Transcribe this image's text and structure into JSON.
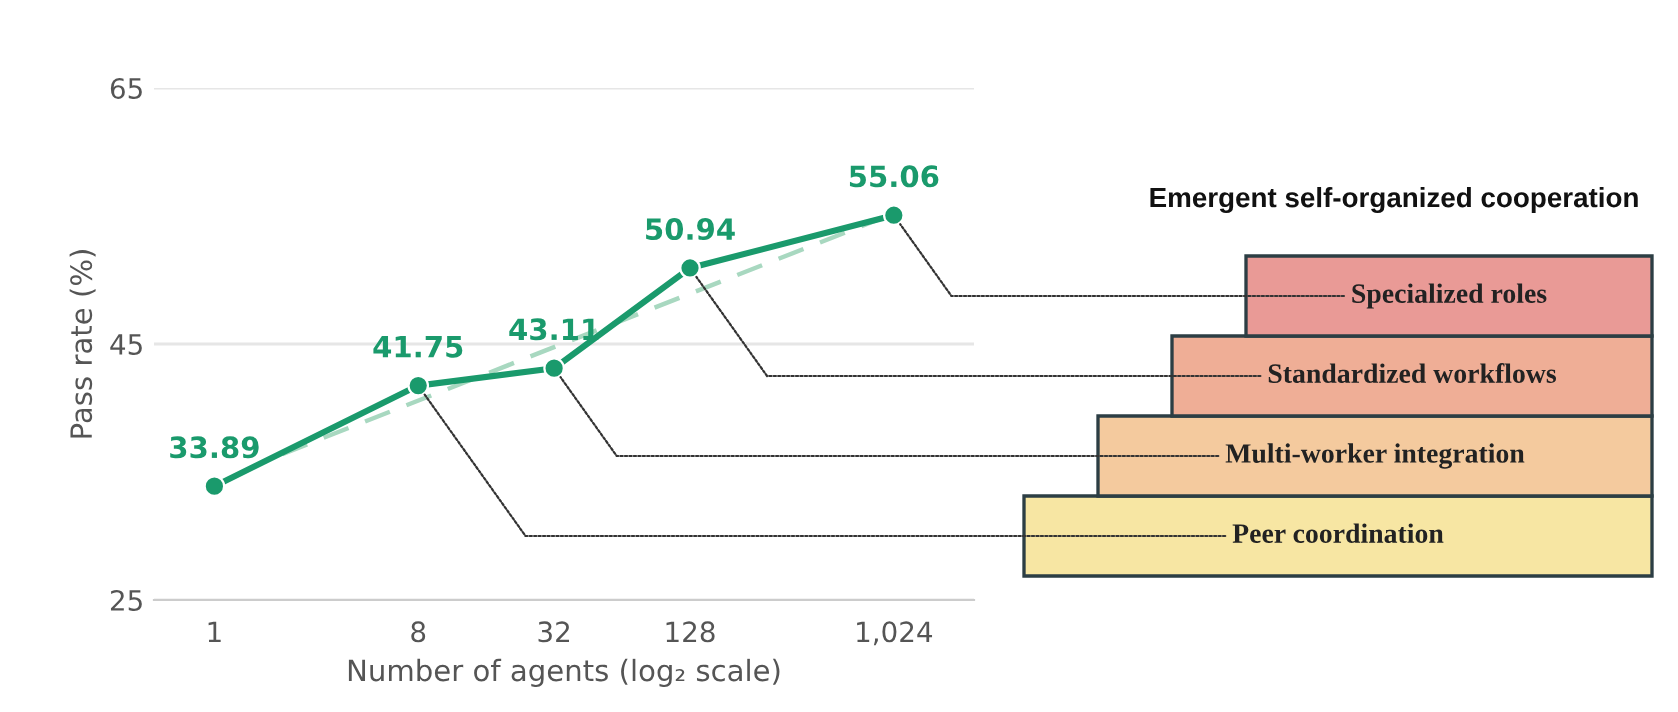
{
  "chart_data": {
    "type": "line",
    "xlabel": "Number of agents (log₂ scale)",
    "ylabel": "Pass rate (%)",
    "log": "x",
    "xlim": [
      0.54,
      2320
    ],
    "xticks": [
      1,
      8,
      32,
      128,
      {
        "value": 1024,
        "label": "1,024"
      }
    ],
    "ylim": [
      25,
      65
    ],
    "yticks": [
      25,
      45,
      65
    ],
    "grid": "y",
    "marker": "circle",
    "line_style": "solid",
    "series": [
      {
        "color": "#1a9a6c",
        "x": [
          1,
          8,
          32,
          128,
          1024
        ],
        "values": [
          33.89,
          41.75,
          43.11,
          50.94,
          55.06
        ],
        "value_labels": [
          "33.89",
          "41.75",
          "43.11",
          "50.94",
          "55.06"
        ]
      },
      {
        "color": "#a8d8c0",
        "type": "line",
        "line_style": "dashed",
        "marker": "none",
        "x": [
          2,
          1024
        ],
        "values": [
          36.4,
          55.2
        ]
      }
    ],
    "annotations": [
      "Emergent self-organized cooperation",
      {
        "text": "Peer coordination",
        "x": 8,
        "y": 41.75
      },
      {
        "text": "Multi-worker integration",
        "x": 32,
        "y": 43.11
      },
      {
        "text": "Standardized workflows",
        "x": 128,
        "y": 50.94
      },
      {
        "text": "Specialized roles",
        "x": 1024,
        "y": 55.06
      }
    ]
  }
}
